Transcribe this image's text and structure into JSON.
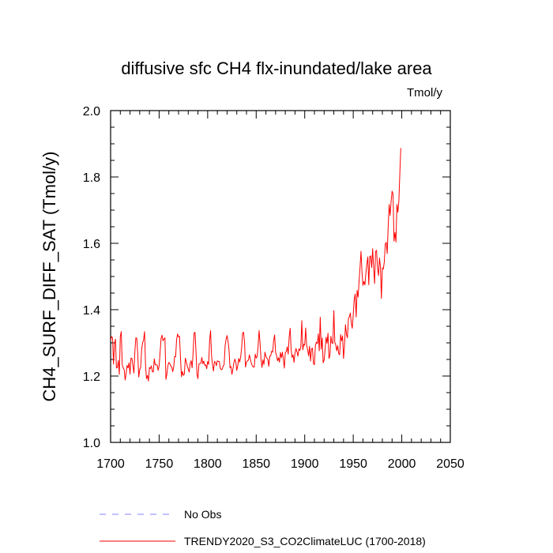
{
  "chart_data": {
    "type": "line",
    "title": "diffusive sfc CH4 flx-inundated/lake area",
    "units_label": "Tmol/y",
    "xlabel": "",
    "ylabel": "CH4_SURF_DIFF_SAT  (Tmol/y)",
    "xlim": [
      1700,
      2050
    ],
    "ylim": [
      1.0,
      2.0
    ],
    "x_ticks": [
      1700,
      1750,
      1800,
      1850,
      1900,
      1950,
      2000,
      2050
    ],
    "y_ticks": [
      1.0,
      1.2,
      1.4,
      1.6,
      1.8,
      2.0
    ],
    "y_tick_labels": [
      "1.0",
      "1.2",
      "1.4",
      "1.6",
      "1.8",
      "2.0"
    ],
    "grid": false,
    "legend": [
      {
        "name": "No Obs",
        "color": "#8080ff",
        "style": "dashed"
      },
      {
        "name": "TRENDY2020_S3_CO2ClimateLUC (1700-2018)",
        "color": "#ff0000",
        "style": "solid"
      }
    ],
    "series": [
      {
        "name": "TRENDY2020_S3_CO2ClimateLUC (1700-2018)",
        "color": "#ff0000",
        "x_start": 1700,
        "x_step": 1,
        "values": [
          1.308,
          1.319,
          1.315,
          1.236,
          1.297,
          1.311,
          1.224,
          1.226,
          1.247,
          1.205,
          1.319,
          1.334,
          1.233,
          1.225,
          1.219,
          1.188,
          1.208,
          1.232,
          1.225,
          1.24,
          1.206,
          1.254,
          1.253,
          1.232,
          1.209,
          1.273,
          1.315,
          1.314,
          1.264,
          1.197,
          1.219,
          1.227,
          1.281,
          1.3,
          1.309,
          1.334,
          1.232,
          1.192,
          1.202,
          1.185,
          1.226,
          1.222,
          1.231,
          1.213,
          1.212,
          1.252,
          1.234,
          1.234,
          1.233,
          1.217,
          1.231,
          1.271,
          1.314,
          1.323,
          1.306,
          1.312,
          1.315,
          1.19,
          1.206,
          1.231,
          1.241,
          1.238,
          1.23,
          1.228,
          1.213,
          1.227,
          1.259,
          1.258,
          1.31,
          1.327,
          1.318,
          1.32,
          1.255,
          1.198,
          1.214,
          1.202,
          1.206,
          1.254,
          1.243,
          1.23,
          1.221,
          1.212,
          1.238,
          1.246,
          1.225,
          1.27,
          1.329,
          1.332,
          1.273,
          1.205,
          1.192,
          1.236,
          1.238,
          1.238,
          1.256,
          1.237,
          1.245,
          1.232,
          1.234,
          1.222,
          1.244,
          1.235,
          1.306,
          1.337,
          1.262,
          1.234,
          1.215,
          1.244,
          1.242,
          1.231,
          1.246,
          1.244,
          1.244,
          1.223,
          1.219,
          1.221,
          1.23,
          1.235,
          1.292,
          1.311,
          1.322,
          1.304,
          1.279,
          1.225,
          1.229,
          1.205,
          1.221,
          1.24,
          1.251,
          1.242,
          1.217,
          1.231,
          1.253,
          1.242,
          1.257,
          1.284,
          1.33,
          1.332,
          1.302,
          1.227,
          1.242,
          1.246,
          1.248,
          1.264,
          1.25,
          1.239,
          1.231,
          1.227,
          1.227,
          1.266,
          1.254,
          1.259,
          1.291,
          1.337,
          1.298,
          1.249,
          1.226,
          1.249,
          1.235,
          1.272,
          1.259,
          1.254,
          1.25,
          1.229,
          1.26,
          1.261,
          1.275,
          1.272,
          1.307,
          1.324,
          1.271,
          1.262,
          1.246,
          1.255,
          1.242,
          1.271,
          1.255,
          1.272,
          1.25,
          1.224,
          1.271,
          1.273,
          1.288,
          1.266,
          1.318,
          1.344,
          1.279,
          1.256,
          1.264,
          1.241,
          1.27,
          1.283,
          1.273,
          1.26,
          1.282,
          1.277,
          1.289,
          1.367,
          1.279,
          1.296,
          1.293,
          1.345,
          1.293,
          1.279,
          1.261,
          1.29,
          1.245,
          1.282,
          1.284,
          1.238,
          1.234,
          1.292,
          1.302,
          1.298,
          1.327,
          1.276,
          1.377,
          1.281,
          1.315,
          1.24,
          1.248,
          1.279,
          1.317,
          1.299,
          1.329,
          1.253,
          1.263,
          1.32,
          1.3,
          1.298,
          1.397,
          1.302,
          1.294,
          1.276,
          1.292,
          1.268,
          1.264,
          1.325,
          1.306,
          1.321,
          1.253,
          1.291,
          1.355,
          1.326,
          1.315,
          1.372,
          1.379,
          1.39,
          1.359,
          1.344,
          1.385,
          1.431,
          1.447,
          1.378,
          1.458,
          1.438,
          1.484,
          1.528,
          1.576,
          1.514,
          1.473,
          1.485,
          1.475,
          1.509,
          1.537,
          1.559,
          1.475,
          1.56,
          1.562,
          1.527,
          1.584,
          1.527,
          1.479,
          1.575,
          1.579,
          1.525,
          1.503,
          1.556,
          1.53,
          1.434,
          1.526,
          1.523,
          1.544,
          1.598,
          1.603,
          1.569,
          1.651,
          1.717,
          1.684,
          1.726,
          1.757,
          1.749,
          1.607,
          1.633,
          1.604,
          1.717,
          1.694,
          1.728,
          1.81,
          1.887
        ]
      },
      {
        "name": "No Obs",
        "color": "#8080ff",
        "x_start": 1700,
        "x_step": 1,
        "values": []
      }
    ]
  }
}
